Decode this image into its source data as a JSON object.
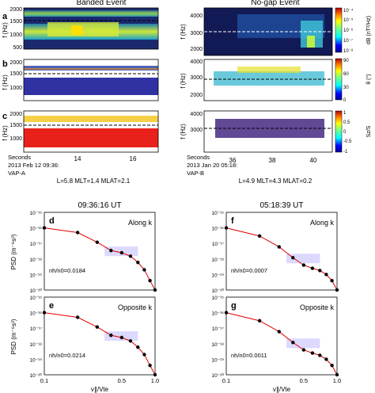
{
  "top": {
    "left_title": "Banded Event",
    "right_title": "No-gap Event",
    "panel_letters": [
      "a",
      "b",
      "c"
    ],
    "left_yticks": [
      "2000",
      "1500",
      "1000",
      "500"
    ],
    "right_yticks": [
      "4000",
      "3000",
      "2000"
    ],
    "ylabel": "f (Hz)",
    "cb_a": {
      "label": "dB (nT²/Hz)",
      "ticks": [
        "10⁻⁴",
        "10⁻⁵",
        "10⁻⁶",
        "10⁻⁷",
        "10⁻⁸"
      ]
    },
    "cb_b": {
      "label": "θ (°)",
      "ticks": [
        "90",
        "60",
        "30",
        "0"
      ]
    },
    "cb_c": {
      "label": "Sz/S",
      "ticks": [
        "1",
        "0.5",
        "0",
        "-0.5",
        "-1"
      ]
    },
    "left_xticks": [
      "14",
      "16"
    ],
    "right_xticks": [
      "36",
      "38",
      "40"
    ],
    "left_caption": [
      "Seconds",
      "2013 Feb 12 09:36:",
      "VAP-A"
    ],
    "right_caption": [
      "Seconds",
      "2013 Jan 20 05:18:",
      "VAP-B"
    ],
    "left_params": "L=5.8   MLT=1.4   MLAT=2.1",
    "right_params": "L=4.9   MLT=4.3   MLAT=0.2"
  },
  "bottom": {
    "left_time": "09:36:16 UT",
    "right_time": "05:18:39 UT",
    "ylabel": "PSD (m⁻⁶s³)",
    "xlabel": "v∥/Vte",
    "yticks": [
      "10⁻¹⁵",
      "10⁻¹⁶",
      "10⁻¹⁷",
      "10⁻¹⁸",
      "10⁻¹⁹",
      "10⁻²⁰"
    ],
    "xticks": [
      "0.1",
      "0.5",
      "1.0"
    ]
  },
  "chart_data": [
    {
      "panel": "d",
      "type": "scatter",
      "annotation": "Along k",
      "ratio_label": "nh/n0=0.0184",
      "x": [
        0.1,
        0.2,
        0.3,
        0.4,
        0.5,
        0.6,
        0.7,
        0.8,
        0.9,
        1.0
      ],
      "y": [
        1e-16,
        5e-17,
        1.2e-17,
        3.5e-18,
        2.5e-18,
        1.5e-18,
        6e-19,
        2e-19,
        4e-20,
        1e-20
      ],
      "xlim": [
        0.1,
        1.0
      ],
      "ylim": [
        1e-20,
        1e-15
      ],
      "xscale": "log",
      "yscale": "log"
    },
    {
      "panel": "e",
      "type": "scatter",
      "annotation": "Opposite k",
      "ratio_label": "nh/n0=0.0214",
      "x": [
        0.1,
        0.2,
        0.3,
        0.4,
        0.5,
        0.6,
        0.7,
        0.8,
        0.9,
        1.0
      ],
      "y": [
        1e-16,
        5e-17,
        1.2e-17,
        3.5e-18,
        2.5e-18,
        1.5e-18,
        6e-19,
        2e-19,
        4e-20,
        1e-20
      ],
      "xlim": [
        0.1,
        1.0
      ],
      "ylim": [
        1e-20,
        1e-15
      ],
      "xscale": "log",
      "yscale": "log"
    },
    {
      "panel": "f",
      "type": "scatter",
      "annotation": "Along k",
      "ratio_label": "nh/n0=0.0007",
      "x": [
        0.1,
        0.2,
        0.3,
        0.4,
        0.5,
        0.6,
        0.7,
        0.8,
        0.9,
        1.0
      ],
      "y": [
        1e-16,
        3e-17,
        6e-18,
        1.2e-18,
        4e-19,
        2.5e-19,
        1.8e-19,
        1e-19,
        4e-20,
        1e-20
      ],
      "xlim": [
        0.1,
        1.0
      ],
      "ylim": [
        1e-20,
        1e-15
      ],
      "xscale": "log",
      "yscale": "log"
    },
    {
      "panel": "g",
      "type": "scatter",
      "annotation": "Opposite k",
      "ratio_label": "nh/n0=0.0011",
      "x": [
        0.1,
        0.2,
        0.3,
        0.4,
        0.5,
        0.6,
        0.7,
        0.8,
        0.9,
        1.0
      ],
      "y": [
        1e-16,
        3e-17,
        6e-18,
        1.2e-18,
        4e-19,
        2.5e-19,
        1.8e-19,
        1e-19,
        4e-20,
        1e-20
      ],
      "xlim": [
        0.1,
        1.0
      ],
      "ylim": [
        1e-20,
        1e-15
      ],
      "xscale": "log",
      "yscale": "log"
    }
  ]
}
